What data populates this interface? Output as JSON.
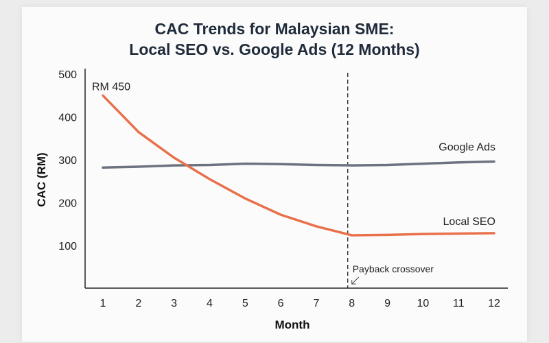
{
  "chart_data": {
    "type": "line",
    "title_line1": "CAC Trends for Malaysian SME:",
    "title_line2": "Local SEO vs. Google Ads (12 Months)",
    "xlabel": "Month",
    "ylabel": "CAC (RM)",
    "x": [
      1,
      2,
      3,
      4,
      5,
      6,
      7,
      8,
      9,
      10,
      11,
      12
    ],
    "xticks": [
      "1",
      "2",
      "3",
      "4",
      "5",
      "6",
      "7",
      "8",
      "9",
      "10",
      "11",
      "12"
    ],
    "yticks": [
      "100",
      "200",
      "300",
      "400",
      "500"
    ],
    "ytick_values": [
      100,
      200,
      300,
      400,
      500
    ],
    "ylim": [
      0,
      500
    ],
    "grid": false,
    "series": [
      {
        "name": "Google Ads",
        "color": "#6b7280",
        "values": [
          282,
          284,
          287,
          288,
          291,
          290,
          288,
          287,
          288,
          291,
          294,
          296
        ]
      },
      {
        "name": "Local SEO",
        "color": "#e8704a",
        "values": [
          450,
          365,
          305,
          255,
          210,
          172,
          145,
          124,
          125,
          127,
          128,
          129
        ]
      }
    ],
    "annotations": {
      "start_value_label": "RM 450",
      "vline_x": 8,
      "vline_label": "Payback crossover"
    }
  }
}
